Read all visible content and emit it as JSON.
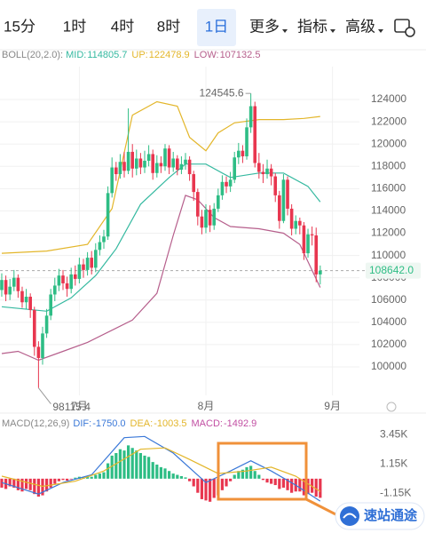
{
  "tabs": [
    "15分",
    "1时",
    "4时",
    "8时",
    "1日",
    "更多",
    "指标",
    "高级"
  ],
  "watermark": "速站通途",
  "chart_data": [
    {
      "type": "candlestick",
      "indicator_label": "BOLL(20,2.0):",
      "categories": [
        null,
        null,
        null,
        null,
        null,
        null,
        null,
        null,
        null,
        null,
        null,
        null,
        null,
        null,
        null,
        null,
        null,
        null,
        null,
        null,
        null,
        null,
        null,
        null,
        null,
        null,
        null,
        null,
        null,
        null,
        null,
        null,
        null,
        null,
        null,
        null,
        null,
        null,
        null,
        null,
        null,
        null,
        null,
        null,
        null,
        null,
        null,
        null,
        null,
        null,
        null,
        null,
        null,
        null,
        null,
        null,
        null,
        null,
        null,
        null,
        null,
        null,
        null,
        null,
        null,
        null,
        null,
        null,
        null,
        null,
        null,
        null,
        null,
        null,
        null,
        null,
        null,
        null,
        null
      ],
      "open": [
        106900,
        107800,
        106500,
        107200,
        108000,
        106800,
        105800,
        106300,
        105100,
        101800,
        100800,
        103000,
        104600,
        106500,
        107300,
        108200,
        107500,
        107000,
        108300,
        107900,
        109200,
        108700,
        109800,
        108900,
        110500,
        111200,
        111700,
        115600,
        117900,
        117300,
        118400,
        117600,
        119300,
        117800,
        118700,
        117900,
        118500,
        119100,
        117400,
        118300,
        118000,
        119600,
        117900,
        118700,
        117700,
        118200,
        118600,
        117300,
        115700,
        113500,
        112500,
        114100,
        112700,
        114200,
        115400,
        116600,
        116200,
        116800,
        118800,
        119400,
        118900,
        121500,
        123400,
        118300,
        117500,
        117300,
        117800,
        117100,
        115400,
        113100,
        116800,
        114200,
        112400,
        113100,
        112700,
        110200,
        111900,
        111800,
        108300
      ],
      "high": [
        108400,
        108200,
        107900,
        108700,
        108300,
        107200,
        107000,
        106600,
        105400,
        102300,
        103600,
        105200,
        107000,
        108000,
        108800,
        108700,
        108100,
        108900,
        109100,
        109800,
        109700,
        110300,
        110400,
        111100,
        111800,
        112300,
        116200,
        118800,
        118400,
        119100,
        119300,
        123200,
        120000,
        119500,
        119200,
        119400,
        119900,
        119500,
        119000,
        118900,
        120000,
        119900,
        119300,
        119000,
        118900,
        119200,
        118900,
        117600,
        116000,
        114100,
        114600,
        114500,
        114700,
        116000,
        117200,
        117100,
        117500,
        119300,
        120100,
        119900,
        122300,
        124545.6,
        123800,
        119200,
        118200,
        118600,
        118200,
        117400,
        115800,
        117300,
        117100,
        114600,
        113600,
        113400,
        113000,
        112400,
        112600,
        112500,
        109100
      ],
      "low": [
        106300,
        105900,
        106000,
        106800,
        106200,
        105300,
        105200,
        104400,
        101000,
        98115.4,
        100200,
        102600,
        104200,
        105900,
        106800,
        106900,
        106300,
        106600,
        107300,
        107500,
        108000,
        108200,
        108300,
        108500,
        110000,
        110600,
        111400,
        115200,
        116700,
        116900,
        117000,
        117300,
        117000,
        117200,
        117300,
        117400,
        118000,
        116800,
        117000,
        117400,
        117600,
        117300,
        117500,
        117200,
        117300,
        117700,
        116700,
        114900,
        112700,
        111900,
        112000,
        112100,
        112300,
        113900,
        115000,
        115600,
        115700,
        116500,
        118200,
        118300,
        118600,
        121000,
        117900,
        116900,
        116500,
        116900,
        116300,
        114800,
        112400,
        112900,
        113600,
        111800,
        111900,
        111900,
        109600,
        109800,
        110900,
        107600,
        107400
      ],
      "close": [
        107800,
        106500,
        107200,
        108000,
        106800,
        105800,
        106300,
        105100,
        101800,
        100800,
        103000,
        104600,
        106500,
        107300,
        108200,
        107500,
        107000,
        108300,
        107900,
        109200,
        108700,
        109800,
        108900,
        110500,
        111200,
        111700,
        115600,
        117900,
        117300,
        118400,
        117600,
        119300,
        117800,
        118700,
        117900,
        118500,
        119100,
        117400,
        118300,
        118000,
        119600,
        117900,
        118700,
        117700,
        118200,
        118600,
        117300,
        115700,
        113500,
        112500,
        114100,
        112700,
        114200,
        115400,
        116600,
        116200,
        116800,
        118800,
        119400,
        118900,
        121500,
        123400,
        118300,
        117500,
        117300,
        117800,
        117100,
        115400,
        113100,
        116800,
        114200,
        112400,
        113100,
        112700,
        110200,
        111900,
        111800,
        108300,
        108642
      ],
      "up_color": "#2ebd85",
      "down_color": "#e8364f",
      "ylim": [
        97450,
        126950
      ],
      "yticks": [
        100000,
        102000,
        104000,
        106000,
        108000,
        110000,
        112000,
        114000,
        116000,
        118000,
        120000,
        122000,
        124000
      ],
      "xlim": [
        -0.43,
        87.6
      ],
      "xticks": [
        {
          "value": 19,
          "label": "7月"
        },
        {
          "value": 50,
          "label": "8月"
        },
        {
          "value": 81,
          "label": "9月"
        }
      ],
      "last_price": {
        "value": 108642,
        "label": "108642.0"
      },
      "grid": true,
      "bands": [
        {
          "name": "MID:",
          "color": "#35b9a0",
          "x": [
            0,
            11,
            17,
            23,
            28,
            34,
            41,
            45,
            50,
            56,
            63,
            69,
            75,
            78
          ],
          "values": [
            105400,
            105000,
            106200,
            108200,
            110600,
            114600,
            117000,
            118200,
            118200,
            117000,
            117400,
            117400,
            116200,
            114805.7
          ]
        },
        {
          "name": "UP:",
          "color": "#e3b62a",
          "x": [
            0,
            11,
            21,
            27,
            32,
            38,
            43,
            46,
            50,
            53,
            57,
            63,
            69,
            74,
            78
          ],
          "values": [
            110200,
            110400,
            111000,
            114200,
            122600,
            123800,
            123400,
            120600,
            119400,
            121000,
            121900,
            122200,
            122200,
            122300,
            122478.9
          ]
        },
        {
          "name": "LOW:",
          "color": "#b65f8c",
          "x": [
            0,
            4,
            9,
            15,
            21,
            32,
            38,
            42,
            45,
            48,
            52,
            56,
            63,
            69,
            73,
            78
          ],
          "values": [
            101200,
            101400,
            100600,
            101400,
            102200,
            104200,
            106600,
            111800,
            115400,
            115000,
            113400,
            112600,
            112400,
            112000,
            111000,
            107132.5
          ]
        }
      ]
    },
    {
      "type": "macd",
      "indicator_label": "MACD(12,26,9)",
      "ylim": [
        -2160,
        4775
      ],
      "yticks": [
        {
          "value": 3450,
          "label": "3.45K"
        },
        {
          "value": 1150,
          "label": "1.15K"
        },
        {
          "value": -1150,
          "label": "-1.15K"
        }
      ],
      "lines": [
        {
          "name": "DIF:",
          "color": "#3a78d8",
          "x": [
            0,
            9,
            15,
            22,
            30,
            35,
            42,
            50,
            56,
            61,
            66,
            72,
            78
          ],
          "values": [
            -300,
            -1200,
            -300,
            300,
            3200,
            3300,
            2000,
            -300,
            600,
            1400,
            600,
            -500,
            -1750
          ],
          "current": {
            "value": -1750,
            "label": "-1750.0"
          }
        },
        {
          "name": "DEA:",
          "color": "#e3b62a",
          "x": [
            0,
            10,
            18,
            25,
            34,
            40,
            46,
            53,
            60,
            66,
            72,
            78
          ],
          "values": [
            200,
            -600,
            -200,
            600,
            2300,
            2400,
            1500,
            400,
            600,
            900,
            200,
            -1003.5
          ]
        }
      ],
      "histogram": {
        "name": "MACD:",
        "color": "#c24fa3",
        "up_color": "#2ebd85",
        "down_color": "#e8364f",
        "values": [
          -700,
          -800,
          -600,
          -700,
          -900,
          -1000,
          -800,
          -900,
          -1200,
          -1400,
          -1300,
          -1000,
          -700,
          -400,
          -200,
          -100,
          -150,
          -50,
          80,
          150,
          100,
          200,
          150,
          300,
          400,
          500,
          1200,
          1800,
          2000,
          2300,
          2200,
          2600,
          2400,
          2200,
          2000,
          1800,
          1700,
          1300,
          1100,
          900,
          800,
          600,
          400,
          300,
          200,
          100,
          -200,
          -600,
          -1100,
          -1600,
          -1700,
          -1800,
          -1500,
          -1300,
          -900,
          -600,
          -200,
          300,
          600,
          700,
          900,
          1000,
          600,
          300,
          -100,
          -300,
          -400,
          -500,
          -800,
          -700,
          -900,
          -1100,
          -1000,
          -1000,
          -1300,
          -1200,
          -1100,
          -1400,
          -1492.9
        ]
      }
    }
  ]
}
